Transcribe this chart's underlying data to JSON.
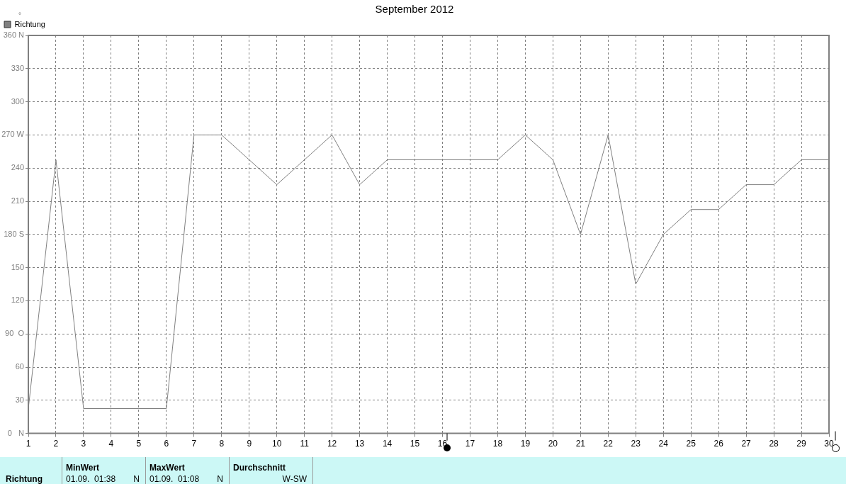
{
  "chart_data": {
    "type": "line",
    "title": "September 2012",
    "ylabel": "°",
    "x": [
      1,
      2,
      3,
      4,
      5,
      6,
      7,
      8,
      9,
      10,
      11,
      12,
      13,
      14,
      15,
      16,
      17,
      18,
      19,
      20,
      21,
      22,
      23,
      24,
      25,
      26,
      27,
      28,
      29,
      30
    ],
    "series": [
      {
        "name": "Richtung",
        "color": "#808080",
        "values": [
          22.5,
          247.5,
          22.5,
          22.5,
          22.5,
          22.5,
          270,
          270,
          247.5,
          225,
          247.5,
          270,
          225,
          247.5,
          247.5,
          247.5,
          247.5,
          247.5,
          270,
          247.5,
          180,
          270,
          135,
          180,
          202.5,
          202.5,
          225,
          225,
          247.5,
          247.5
        ]
      }
    ],
    "xlim": [
      1,
      30
    ],
    "xticks": [
      1,
      2,
      3,
      4,
      5,
      6,
      7,
      8,
      9,
      10,
      11,
      12,
      13,
      14,
      15,
      16,
      17,
      18,
      19,
      20,
      21,
      22,
      23,
      24,
      25,
      26,
      27,
      28,
      29,
      30
    ],
    "ylim": [
      0,
      360
    ],
    "yticks": [
      {
        "value": 0,
        "label": "0   N"
      },
      30,
      60,
      {
        "value": 90,
        "label": "90  O"
      },
      120,
      150,
      {
        "value": 180,
        "label": "180 S"
      },
      210,
      240,
      {
        "value": 270,
        "label": "270 W"
      },
      300,
      330,
      {
        "value": 360,
        "label": "360 N"
      }
    ],
    "grid": true,
    "legend": "top left",
    "marker": "none",
    "line_style": "solid",
    "annotations": [
      "Richtung",
      "MinWert",
      "01.09.  01:38",
      "N",
      "MaxWert",
      "01.09.  01:08",
      "N",
      "Durchschnitt",
      "W-SW"
    ]
  }
}
